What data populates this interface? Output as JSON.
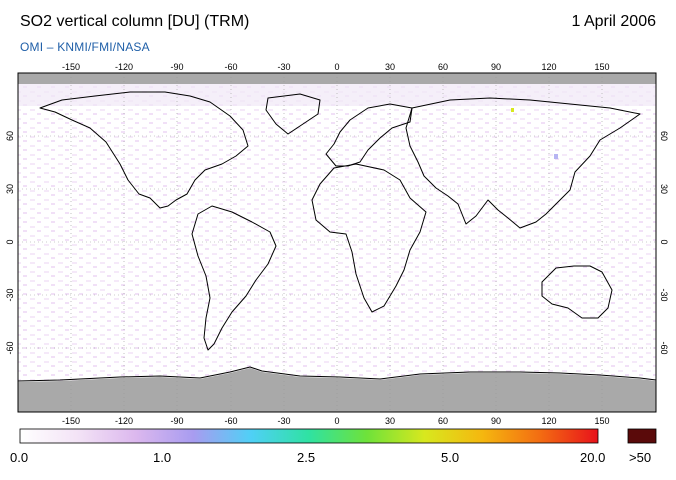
{
  "header": {
    "title": "SO2 vertical column [DU] (TRM)",
    "date": "1 April 2006",
    "subtitle": "OMI  –  KNMI/FMI/NASA"
  },
  "map": {
    "lon_ticks": [
      "-150",
      "-120",
      "-90",
      "-60",
      "-30",
      "0",
      "30",
      "60",
      "90",
      "120",
      "150"
    ],
    "lat_ticks": [
      "60",
      "30",
      "0",
      "-30",
      "-60"
    ],
    "colors": {
      "land_missing": "#a9a9a9",
      "coast": "#000000",
      "grid": "#9a9a9a"
    }
  },
  "colorbar": {
    "labels": [
      "0.0",
      "1.0",
      "2.5",
      "5.0",
      "20.0",
      ">50"
    ],
    "gradient_stops": [
      "#ffffff",
      "#f3e3f6",
      "#dcb8ee",
      "#a89cf0",
      "#4fd0f6",
      "#2fe2a2",
      "#6ee23a",
      "#d8e81e",
      "#f5b70f",
      "#f36c12",
      "#e8121b"
    ],
    "overflow_color": "#5a0a0a"
  }
}
